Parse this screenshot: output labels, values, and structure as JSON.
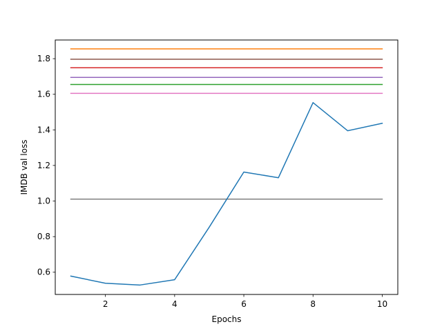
{
  "chart_data": {
    "type": "line",
    "xlabel": "Epochs",
    "ylabel": "IMDB val loss",
    "xlim": [
      0.55,
      10.45
    ],
    "ylim": [
      0.475,
      1.905
    ],
    "xticks": [
      2,
      4,
      6,
      8,
      10
    ],
    "yticks": [
      0.6,
      0.8,
      1.0,
      1.2,
      1.4,
      1.6,
      1.8
    ],
    "grid": false,
    "series": [
      {
        "color": "#ff7f0e",
        "x": [
          1,
          10
        ],
        "y": [
          1.855,
          1.855
        ]
      },
      {
        "color": "#8c564b",
        "x": [
          1,
          10
        ],
        "y": [
          1.797,
          1.797
        ]
      },
      {
        "color": "#d62728",
        "x": [
          1,
          10
        ],
        "y": [
          1.749,
          1.749
        ]
      },
      {
        "color": "#9467bd",
        "x": [
          1,
          10
        ],
        "y": [
          1.695,
          1.695
        ]
      },
      {
        "color": "#2ca02c",
        "x": [
          1,
          10
        ],
        "y": [
          1.655,
          1.655
        ]
      },
      {
        "color": "#e377c2",
        "x": [
          1,
          10
        ],
        "y": [
          1.605,
          1.605
        ]
      },
      {
        "color": "#7f7f7f",
        "x": [
          1,
          10
        ],
        "y": [
          1.011,
          1.011
        ]
      },
      {
        "color": "#1f77b4",
        "x": [
          1,
          2,
          3,
          4,
          5,
          6,
          7,
          8,
          9,
          10
        ],
        "y": [
          0.578,
          0.538,
          0.528,
          0.558,
          0.853,
          1.163,
          1.131,
          1.553,
          1.395,
          1.437
        ]
      }
    ]
  }
}
